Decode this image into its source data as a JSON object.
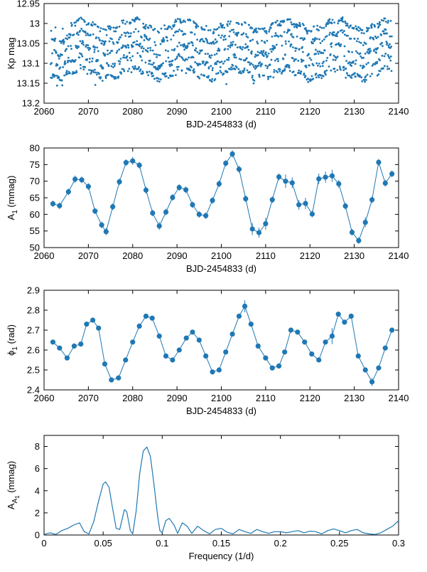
{
  "colors": {
    "series": "#1f78b4",
    "axis": "#000000"
  },
  "chart_data": [
    {
      "id": "panel-kp",
      "type": "scatter",
      "xlabel": "BJD-2454833 (d)",
      "ylabel": "Kp mag",
      "xlim": [
        2060,
        2140
      ],
      "ylim": [
        13.2,
        12.95
      ],
      "y_inverted": true,
      "xticks": [
        "2060",
        "2070",
        "2080",
        "2090",
        "2100",
        "2110",
        "2120",
        "2130",
        "2140"
      ],
      "yticks": [
        "12.95",
        "13",
        "13.05",
        "13.1",
        "13.15",
        "13.2"
      ],
      "grid": false,
      "series_description": "dense band of points; bands at 13.00, 13.03, 13.06, 13.09, 13.12 mag with ~0.02 mag modulation",
      "bands": [
        13.005,
        13.035,
        13.065,
        13.095,
        13.125
      ],
      "time_range": [
        2061.5,
        2138.5
      ]
    },
    {
      "id": "panel-a1",
      "type": "line",
      "xlabel": "BJD-2454833 (d)",
      "ylabel": "A",
      "ylabel_sub": "1",
      "ylabel_unit": " (mmag)",
      "xlim": [
        2060,
        2140
      ],
      "ylim": [
        50,
        80
      ],
      "xticks": [
        "2060",
        "2070",
        "2080",
        "2090",
        "2100",
        "2110",
        "2120",
        "2130",
        "2140"
      ],
      "yticks": [
        "50",
        "55",
        "60",
        "65",
        "70",
        "75",
        "80"
      ],
      "grid": false,
      "x": [
        2062,
        2063.5,
        2065.5,
        2067,
        2068.5,
        2070,
        2071.5,
        2073,
        2074,
        2075.5,
        2077,
        2078.5,
        2080,
        2081.5,
        2083,
        2084.5,
        2086,
        2087.5,
        2089,
        2090.5,
        2092,
        2093.5,
        2095,
        2096.5,
        2098,
        2099.5,
        2101,
        2102.5,
        2104,
        2105.5,
        2107,
        2108.5,
        2110,
        2111.5,
        2113,
        2114.5,
        2116,
        2117.5,
        2119,
        2120.5,
        2122,
        2123.5,
        2125,
        2126.5,
        2128,
        2129.5,
        2131,
        2132.5,
        2134,
        2135.5,
        2137,
        2138.5
      ],
      "y": [
        63.2,
        62.6,
        66.8,
        70.6,
        70.4,
        68.4,
        61.0,
        56.8,
        54.8,
        62.3,
        69.8,
        75.6,
        76.1,
        74.8,
        67.3,
        60.4,
        56.5,
        60.7,
        65.1,
        68.1,
        67.4,
        62.9,
        60.0,
        59.6,
        64.2,
        69.2,
        75.4,
        78.2,
        73.6,
        64.7,
        55.6,
        54.5,
        57.2,
        64.4,
        71.3,
        70.0,
        69.5,
        62.9,
        63.3,
        60.1,
        70.7,
        71.2,
        71.6,
        69.2,
        62.5,
        54.6,
        52.1,
        57.6,
        64.4,
        75.7,
        69.4,
        72.2
      ],
      "yerr": [
        0.9,
        1.0,
        1.0,
        1.1,
        1.0,
        1.0,
        0.9,
        1.0,
        1.1,
        1.0,
        1.0,
        1.0,
        1.2,
        1.0,
        1.0,
        1.0,
        1.2,
        1.0,
        1.0,
        1.0,
        1.0,
        1.0,
        1.0,
        1.0,
        1.0,
        1.0,
        1.0,
        1.1,
        1.0,
        1.0,
        1.8,
        1.5,
        1.8,
        1.0,
        1.0,
        2.0,
        1.6,
        1.5,
        1.7,
        1.0,
        1.6,
        1.7,
        1.8,
        1.2,
        1.0,
        1.0,
        1.0,
        1.5,
        1.0,
        1.0,
        1.0,
        1.0
      ]
    },
    {
      "id": "panel-phi",
      "type": "line",
      "xlabel": "BJD-2454833 (d)",
      "ylabel": "ϕ",
      "ylabel_sub": "1",
      "ylabel_unit": " (rad)",
      "xlim": [
        2060,
        2140
      ],
      "ylim": [
        2.4,
        2.9
      ],
      "xticks": [
        "2060",
        "2070",
        "2080",
        "2090",
        "2100",
        "2110",
        "2120",
        "2130",
        "2140"
      ],
      "yticks": [
        "2.4",
        "2.5",
        "2.6",
        "2.7",
        "2.8",
        "2.9"
      ],
      "grid": false,
      "x": [
        2062,
        2063.5,
        2065.2,
        2066.8,
        2068.3,
        2069.6,
        2071,
        2072.3,
        2073.7,
        2075.2,
        2076.8,
        2078.4,
        2080,
        2081.5,
        2083,
        2084.4,
        2086,
        2087.5,
        2089,
        2090.5,
        2092.1,
        2093.5,
        2095,
        2096.5,
        2098,
        2099.5,
        2101,
        2102.5,
        2104,
        2105.3,
        2106.7,
        2108.3,
        2110,
        2111.5,
        2113,
        2114.3,
        2115.7,
        2117.2,
        2118.8,
        2120.4,
        2122,
        2123.5,
        2125,
        2126.4,
        2127.8,
        2129.3,
        2130.9,
        2132.5,
        2134,
        2135.5,
        2137,
        2138.5
      ],
      "y": [
        2.64,
        2.61,
        2.56,
        2.62,
        2.63,
        2.73,
        2.75,
        2.71,
        2.53,
        2.45,
        2.46,
        2.55,
        2.64,
        2.72,
        2.77,
        2.76,
        2.67,
        2.57,
        2.55,
        2.6,
        2.66,
        2.69,
        2.65,
        2.57,
        2.49,
        2.5,
        2.59,
        2.68,
        2.77,
        2.82,
        2.73,
        2.62,
        2.56,
        2.51,
        2.52,
        2.59,
        2.7,
        2.69,
        2.64,
        2.58,
        2.55,
        2.64,
        2.67,
        2.78,
        2.74,
        2.77,
        2.57,
        2.5,
        2.44,
        2.51,
        2.61,
        2.7
      ],
      "yerr": [
        0.012,
        0.01,
        0.012,
        0.01,
        0.01,
        0.01,
        0.012,
        0.01,
        0.012,
        0.01,
        0.012,
        0.01,
        0.01,
        0.01,
        0.01,
        0.01,
        0.012,
        0.01,
        0.01,
        0.01,
        0.01,
        0.01,
        0.01,
        0.012,
        0.012,
        0.01,
        0.01,
        0.01,
        0.01,
        0.03,
        0.012,
        0.01,
        0.01,
        0.012,
        0.012,
        0.01,
        0.012,
        0.012,
        0.012,
        0.012,
        0.01,
        0.012,
        0.04,
        0.01,
        0.012,
        0.012,
        0.01,
        0.012,
        0.02,
        0.012,
        0.012,
        0.01
      ]
    },
    {
      "id": "panel-fft",
      "type": "line",
      "xlabel": "Frequency (1/d)",
      "ylabel": "A",
      "ylabel_sub": "A",
      "ylabel_subsub": "1",
      "ylabel_unit": " (mmag)",
      "xlim": [
        0,
        0.3
      ],
      "ylim": [
        0,
        9
      ],
      "xticks": [
        "0",
        "0.05",
        "0.1",
        "0.15",
        "0.2",
        "0.25",
        "0.3"
      ],
      "yticks": [
        "0",
        "2",
        "4",
        "6",
        "8"
      ],
      "grid": false,
      "x": [
        0.0,
        0.005,
        0.01,
        0.015,
        0.02,
        0.025,
        0.03,
        0.034,
        0.038,
        0.042,
        0.046,
        0.05,
        0.052,
        0.055,
        0.058,
        0.061,
        0.064,
        0.066,
        0.068,
        0.07,
        0.073,
        0.075,
        0.078,
        0.081,
        0.084,
        0.087,
        0.09,
        0.093,
        0.096,
        0.098,
        0.1,
        0.103,
        0.106,
        0.11,
        0.113,
        0.117,
        0.121,
        0.125,
        0.13,
        0.135,
        0.14,
        0.145,
        0.15,
        0.155,
        0.16,
        0.165,
        0.17,
        0.175,
        0.18,
        0.185,
        0.19,
        0.195,
        0.2,
        0.205,
        0.21,
        0.215,
        0.22,
        0.225,
        0.23,
        0.235,
        0.24,
        0.245,
        0.25,
        0.255,
        0.26,
        0.265,
        0.27,
        0.275,
        0.28,
        0.285,
        0.29,
        0.295,
        0.3
      ],
      "y": [
        0.05,
        0.2,
        0.05,
        0.4,
        0.6,
        0.9,
        1.1,
        0.3,
        0.1,
        1.2,
        3.0,
        4.6,
        4.8,
        4.3,
        2.4,
        0.6,
        0.5,
        1.4,
        2.3,
        2.1,
        0.4,
        0.1,
        2.2,
        5.6,
        7.6,
        7.95,
        7.1,
        4.6,
        1.8,
        0.4,
        0.2,
        1.3,
        1.5,
        0.9,
        0.15,
        1.1,
        0.8,
        0.15,
        0.8,
        0.4,
        0.1,
        0.5,
        0.6,
        0.25,
        0.1,
        0.5,
        0.3,
        0.15,
        0.5,
        0.3,
        0.15,
        0.3,
        0.3,
        0.2,
        0.3,
        0.4,
        0.2,
        0.35,
        0.3,
        0.1,
        0.4,
        0.55,
        0.4,
        0.2,
        0.4,
        0.5,
        0.2,
        0.1,
        0.05,
        0.2,
        0.5,
        0.8,
        1.3
      ]
    }
  ]
}
